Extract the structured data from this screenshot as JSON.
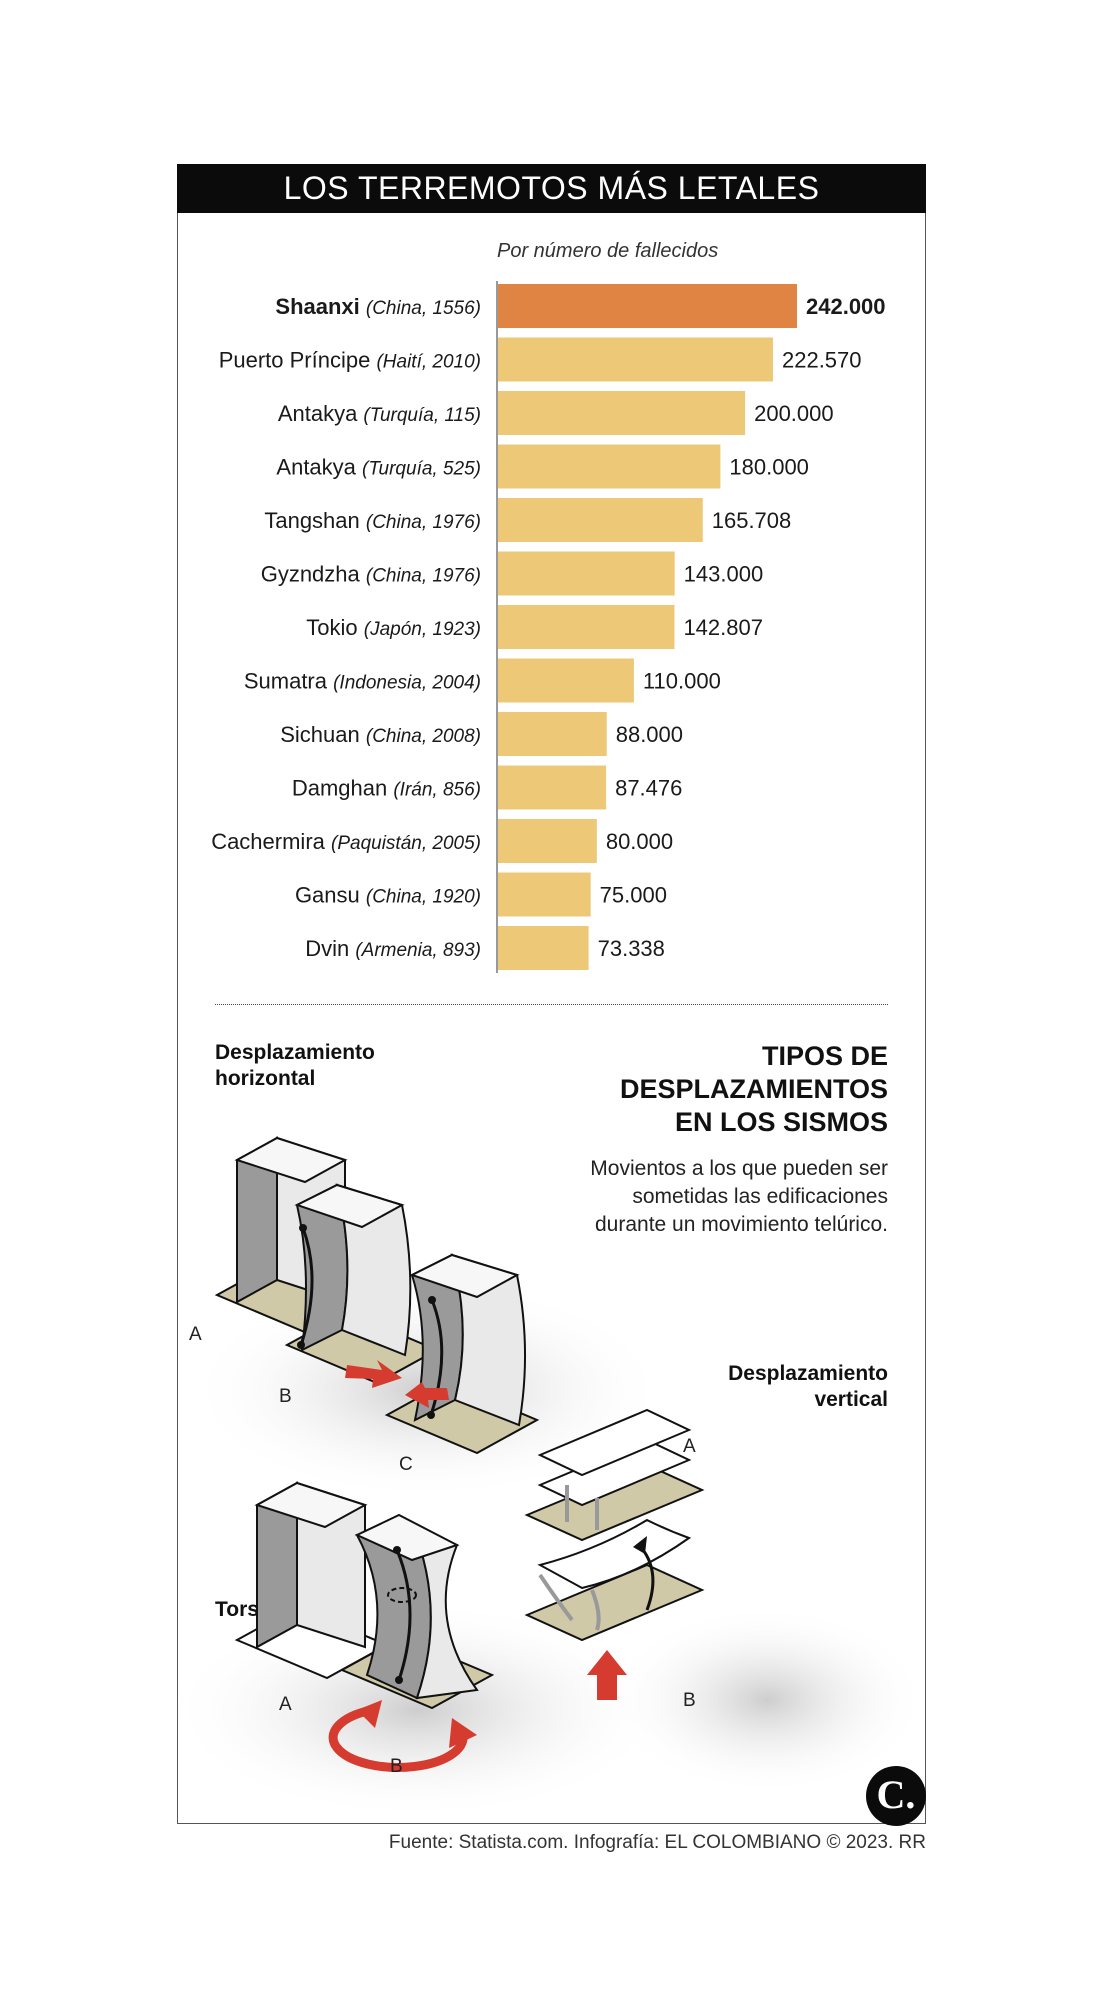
{
  "title": "LOS TERREMOTOS MÁS LETALES",
  "chart_data": {
    "type": "bar",
    "orientation": "horizontal",
    "subtitle": "Por número de fallecidos",
    "highlight_index": 0,
    "colors": {
      "highlight": "#e08444",
      "bar": "#ecc877"
    },
    "categories": [
      {
        "name": "Shaanxi",
        "detail": "(China, 1556)",
        "value": 242000,
        "label": "242.000"
      },
      {
        "name": "Puerto Príncipe",
        "detail": "(Haití, 2010)",
        "value": 222570,
        "label": "222.570"
      },
      {
        "name": "Antakya",
        "detail": "(Turquía, 115)",
        "value": 200000,
        "label": "200.000"
      },
      {
        "name": "Antakya",
        "detail": "(Turquía, 525)",
        "value": 180000,
        "label": "180.000"
      },
      {
        "name": "Tangshan",
        "detail": "(China, 1976)",
        "value": 165708,
        "label": "165.708"
      },
      {
        "name": "Gyzndzha",
        "detail": "(China, 1976)",
        "value": 143000,
        "label": "143.000"
      },
      {
        "name": "Tokio",
        "detail": "(Japón, 1923)",
        "value": 142807,
        "label": "142.807"
      },
      {
        "name": "Sumatra",
        "detail": "(Indonesia, 2004)",
        "value": 110000,
        "label": "110.000"
      },
      {
        "name": "Sichuan",
        "detail": "(China, 2008)",
        "value": 88000,
        "label": "88.000"
      },
      {
        "name": "Damghan",
        "detail": "(Irán, 856)",
        "value": 87476,
        "label": "87.476"
      },
      {
        "name": "Cachermira",
        "detail": "(Paquistán, 2005)",
        "value": 80000,
        "label": "80.000"
      },
      {
        "name": "Gansu",
        "detail": "(China, 1920)",
        "value": 75000,
        "label": "75.000"
      },
      {
        "name": "Dvin",
        "detail": "(Armenia, 893)",
        "value": 73338,
        "label": "73.338"
      }
    ]
  },
  "types": {
    "title_lines": [
      "TIPOS DE",
      "DESPLAZAMIENTOS",
      "EN LOS SISMOS"
    ],
    "description": "Movientos a los que pueden ser sometidas las edificaciones durante un movimiento telúrico.",
    "horizontal_heading_lines": [
      "Desplazamiento",
      "horizontal"
    ],
    "vertical_heading_lines": [
      "Desplazamiento",
      "vertical"
    ],
    "torsion_heading": "Torsión",
    "labels": {
      "a": "A",
      "b": "B",
      "c": "C"
    }
  },
  "logo": "C.",
  "source": "Fuente: Statista.com. Infografía: EL COLOMBIANO © 2023. RR"
}
